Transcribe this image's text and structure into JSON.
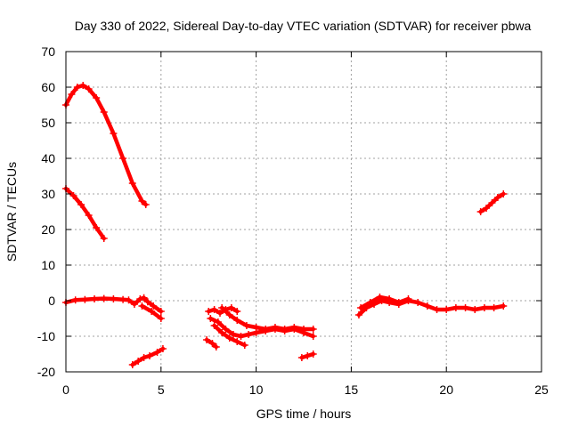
{
  "chart_data": {
    "type": "scatter",
    "title": "Day 330 of 2022, Sidereal Day-to-day VTEC variation (SDTVAR) for receiver pbwa",
    "xlabel": "GPS time / hours",
    "ylabel": "SDTVAR / TECUs",
    "xlim": [
      0,
      25
    ],
    "ylim": [
      -20,
      70
    ],
    "xticks": [
      0,
      5,
      10,
      15,
      20,
      25
    ],
    "yticks": [
      -20,
      -10,
      0,
      10,
      20,
      30,
      40,
      50,
      60,
      70
    ],
    "grid": true,
    "marker": "plus",
    "color": "#ff0000",
    "series": [
      {
        "name": "arc-high",
        "x": [
          0.0,
          0.3,
          0.6,
          0.9,
          1.2,
          1.6,
          2.0,
          2.5,
          3.0,
          3.5,
          4.0,
          4.2
        ],
        "y": [
          55,
          58,
          60,
          60.5,
          59.5,
          57,
          53,
          47,
          40,
          33,
          28,
          27
        ]
      },
      {
        "name": "arc-mid",
        "x": [
          0.0,
          0.4,
          0.8,
          1.2,
          1.6,
          2.0
        ],
        "y": [
          31.5,
          29.5,
          27,
          24,
          20.5,
          17.5
        ]
      },
      {
        "name": "arc-near-zero-a",
        "x": [
          0.0,
          0.5,
          1.0,
          1.5,
          2.0,
          2.5,
          3.0,
          3.3,
          3.6,
          3.9,
          4.1,
          4.3,
          4.6,
          5.0
        ],
        "y": [
          -0.5,
          0.2,
          0.3,
          0.5,
          0.6,
          0.5,
          0.3,
          0.2,
          -1,
          0.5,
          0.8,
          -0.3,
          -1.5,
          -3
        ]
      },
      {
        "name": "arc-near-zero-b",
        "x": [
          4.0,
          4.5,
          5.0
        ],
        "y": [
          -1.5,
          -3,
          -5
        ]
      },
      {
        "name": "arc-low-rise",
        "x": [
          3.5,
          3.8,
          4.1,
          4.4,
          4.8,
          5.1
        ],
        "y": [
          -18,
          -17,
          -16,
          -15.5,
          -14.5,
          -13.5
        ]
      },
      {
        "name": "arc-dip-a",
        "x": [
          7.5,
          7.8,
          8.1,
          8.4,
          8.7,
          9.0
        ],
        "y": [
          -3,
          -2.5,
          -3.5,
          -2.5,
          -2,
          -3
        ]
      },
      {
        "name": "arc-dip-b",
        "x": [
          7.6,
          8.0,
          8.4,
          8.8,
          9.2,
          9.6,
          10.0,
          10.5,
          11.0,
          11.5,
          12.0,
          12.5,
          13.0
        ],
        "y": [
          -5,
          -6,
          -8,
          -9.5,
          -10,
          -9.5,
          -9,
          -8.5,
          -8,
          -8.5,
          -8,
          -9,
          -10
        ]
      },
      {
        "name": "arc-dip-c",
        "x": [
          8.2,
          8.6,
          9.0,
          9.5,
          10.0,
          10.5,
          11.0,
          11.5,
          12.0,
          12.5,
          13.0
        ],
        "y": [
          -2,
          -4,
          -5.5,
          -7,
          -7.5,
          -8,
          -7.5,
          -8,
          -7.5,
          -8,
          -8
        ]
      },
      {
        "name": "arc-dip-d",
        "x": [
          7.8,
          8.2,
          8.6,
          9.0,
          9.4
        ],
        "y": [
          -7,
          -9,
          -10.5,
          -11.5,
          -12.5
        ]
      },
      {
        "name": "arc-short-a",
        "x": [
          7.4,
          7.7,
          7.9
        ],
        "y": [
          -11,
          -12,
          -13
        ]
      },
      {
        "name": "arc-short-b",
        "x": [
          12.4,
          12.7,
          13.0
        ],
        "y": [
          -16,
          -15.5,
          -15
        ]
      },
      {
        "name": "arc-evening",
        "x": [
          15.4,
          15.8,
          16.2,
          16.6,
          17.0,
          17.5,
          18.0,
          18.5,
          19.0,
          19.5,
          20.0,
          20.5,
          21.0,
          21.5,
          22.0,
          22.5,
          23.0
        ],
        "y": [
          -4,
          -2,
          -1,
          0,
          -0.5,
          -1,
          0,
          -0.5,
          -1.5,
          -2.5,
          -2.5,
          -2,
          -2,
          -2.5,
          -2,
          -2,
          -1.5
        ]
      },
      {
        "name": "arc-evening-b",
        "x": [
          15.5,
          16.0,
          16.5,
          17.0,
          17.5,
          18.0
        ],
        "y": [
          -2,
          -0.5,
          1,
          0.5,
          -0.5,
          0.5
        ]
      },
      {
        "name": "arc-late",
        "x": [
          21.8,
          22.1,
          22.4,
          22.7,
          23.0
        ],
        "y": [
          25,
          26,
          27.5,
          29,
          30
        ]
      }
    ]
  }
}
